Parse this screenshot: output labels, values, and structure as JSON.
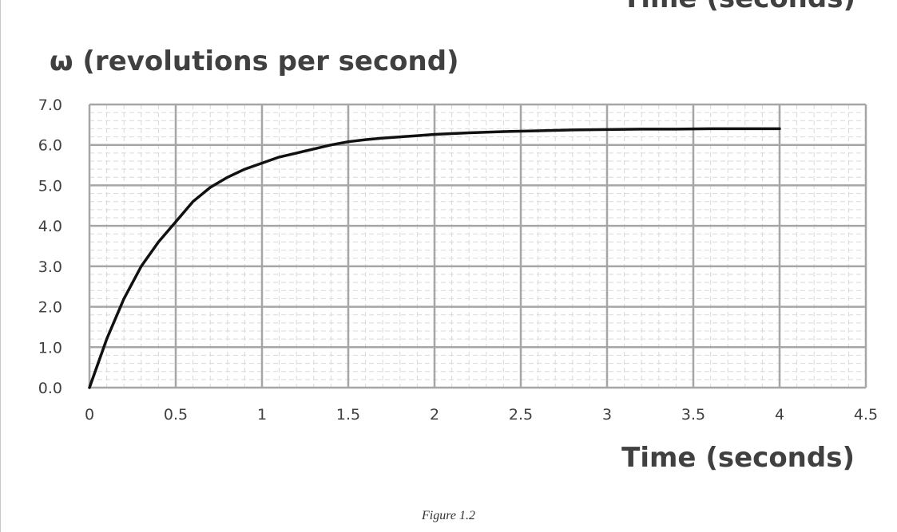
{
  "page": {
    "clipped_top_label": "Time (seconds)",
    "figure_caption": "Figure 1.2"
  },
  "chart_data": {
    "type": "line",
    "title": "",
    "ylabel": "ω (revolutions per second)",
    "xlabel": "Time (seconds)",
    "xlim": [
      0,
      4.5
    ],
    "ylim": [
      0,
      7
    ],
    "x_ticks": [
      "0",
      "0.5",
      "1",
      "1.5",
      "2",
      "2.5",
      "3",
      "3.5",
      "4",
      "4.5"
    ],
    "y_ticks": [
      "0.0",
      "1.0",
      "2.0",
      "3.0",
      "4.0",
      "5.0",
      "6.0",
      "7.0"
    ],
    "grid": "major and minor",
    "legend": "none",
    "line_color": "#111111",
    "series": [
      {
        "x": [
          0,
          0.1,
          0.2,
          0.3,
          0.4,
          0.5,
          0.6,
          0.7,
          0.8,
          0.9,
          1.0,
          1.1,
          1.2,
          1.3,
          1.4,
          1.5,
          1.6,
          1.7,
          1.8,
          1.9,
          2.0,
          2.2,
          2.4,
          2.6,
          2.8,
          3.0,
          3.2,
          3.4,
          3.6,
          3.8,
          4.0
        ],
        "y": [
          0.0,
          1.2,
          2.2,
          3.0,
          3.6,
          4.1,
          4.6,
          4.95,
          5.2,
          5.4,
          5.55,
          5.7,
          5.8,
          5.9,
          6.0,
          6.08,
          6.13,
          6.17,
          6.2,
          6.23,
          6.26,
          6.3,
          6.33,
          6.35,
          6.37,
          6.38,
          6.39,
          6.39,
          6.4,
          6.4,
          6.4
        ]
      }
    ]
  }
}
